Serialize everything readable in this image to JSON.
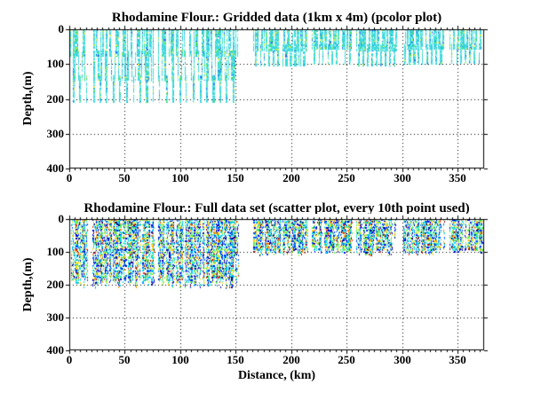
{
  "window": {
    "background": "#ffffff",
    "axis_color": "#000000"
  },
  "plots": [
    {
      "title": "Rhodamine Flour.: Gridded data (1km x 4m) (pcolor plot)",
      "ylabel": "Depth,(m)",
      "xlabel": "",
      "xtick_labels": [
        "0",
        "50",
        "100",
        "150",
        "200",
        "250",
        "300",
        "350"
      ],
      "ytick_labels": [
        "0",
        "100",
        "200",
        "300",
        "400"
      ]
    },
    {
      "title": "Rhodamine Flour.: Full data set (scatter plot, every 10th point used)",
      "ylabel": "Depth,(m)",
      "xlabel": "Distance, (km)",
      "xtick_labels": [
        "0",
        "50",
        "100",
        "150",
        "200",
        "250",
        "300",
        "350"
      ],
      "ytick_labels": [
        "0",
        "100",
        "200",
        "300",
        "400"
      ]
    }
  ],
  "chart_data": [
    {
      "type": "heatmap",
      "title": "Rhodamine Flour.: Gridded data (1km x 4m) (pcolor plot)",
      "xlabel": "",
      "ylabel": "Depth,(m)",
      "xlim": [
        0,
        374
      ],
      "ylim": [
        0,
        400
      ],
      "y_axis_reversed": true,
      "xticks": [
        0,
        50,
        100,
        150,
        200,
        250,
        300,
        350
      ],
      "yticks": [
        0,
        100,
        200,
        300,
        400
      ],
      "x_minor_step": 5,
      "grid": "dotted",
      "cell_km": 1,
      "cell_m": 4,
      "segments": [
        {
          "x_start": 1,
          "x_end": 152,
          "depth_top": 0,
          "depth_bottom": 210,
          "undulation_period_km": 6,
          "gaps": [
            [
              16,
              21
            ],
            [
              76,
              80
            ]
          ]
        },
        {
          "x_start": 166,
          "x_end": 215,
          "depth_top": 0,
          "depth_bottom": 105,
          "undulation_period_km": 4,
          "gaps": []
        },
        {
          "x_start": 219,
          "x_end": 255,
          "depth_top": 0,
          "depth_bottom": 102,
          "undulation_period_km": 4,
          "gaps": []
        },
        {
          "x_start": 259,
          "x_end": 296,
          "depth_top": 0,
          "depth_bottom": 105,
          "undulation_period_km": 4,
          "gaps": []
        },
        {
          "x_start": 301,
          "x_end": 338,
          "depth_top": 0,
          "depth_bottom": 103,
          "undulation_period_km": 4,
          "gaps": []
        },
        {
          "x_start": 343,
          "x_end": 372,
          "depth_top": 0,
          "depth_bottom": 100,
          "undulation_period_km": 4,
          "gaps": []
        }
      ],
      "palette": [
        {
          "color": "#3cd8e0",
          "weight": 50
        },
        {
          "color": "#63e6e6",
          "weight": 15
        },
        {
          "color": "#9df2ee",
          "weight": 8
        },
        {
          "color": "#27b7d4",
          "weight": 5
        },
        {
          "color": "#42df68",
          "weight": 7
        },
        {
          "color": "#b6ee52",
          "weight": 4
        },
        {
          "color": "#ecf25e",
          "weight": 2
        },
        {
          "color": "#2e6ef2",
          "weight": 4
        },
        {
          "color": "#ffffff",
          "weight": 5
        }
      ]
    },
    {
      "type": "scatter",
      "title": "Rhodamine Flour.: Full data set (scatter plot, every 10th point used)",
      "xlabel": "Distance, (km)",
      "ylabel": "Depth,(m)",
      "xlim": [
        0,
        374
      ],
      "ylim": [
        0,
        400
      ],
      "y_axis_reversed": true,
      "xticks": [
        0,
        50,
        100,
        150,
        200,
        250,
        300,
        350
      ],
      "yticks": [
        0,
        100,
        200,
        300,
        400
      ],
      "x_minor_step": 5,
      "grid": "dotted",
      "marker_px": 2,
      "segments": [
        {
          "x_start": 1,
          "x_end": 152,
          "depth_top": 0,
          "depth_bottom": 212,
          "undulation_period_km": 6,
          "gaps": [
            [
              16,
              21
            ],
            [
              76,
              80
            ]
          ]
        },
        {
          "x_start": 166,
          "x_end": 215,
          "depth_top": 0,
          "depth_bottom": 110,
          "undulation_period_km": 4,
          "gaps": []
        },
        {
          "x_start": 219,
          "x_end": 255,
          "depth_top": 0,
          "depth_bottom": 106,
          "undulation_period_km": 4,
          "gaps": []
        },
        {
          "x_start": 259,
          "x_end": 296,
          "depth_top": 0,
          "depth_bottom": 110,
          "undulation_period_km": 4,
          "gaps": []
        },
        {
          "x_start": 301,
          "x_end": 338,
          "depth_top": 0,
          "depth_bottom": 108,
          "undulation_period_km": 4,
          "gaps": []
        },
        {
          "x_start": 343,
          "x_end": 372,
          "depth_top": 0,
          "depth_bottom": 104,
          "undulation_period_km": 4,
          "gaps": []
        }
      ],
      "palette": [
        {
          "color": "#00008f",
          "weight": 5
        },
        {
          "color": "#0000e8",
          "weight": 9
        },
        {
          "color": "#0045ff",
          "weight": 10
        },
        {
          "color": "#0090ff",
          "weight": 9
        },
        {
          "color": "#00d4f0",
          "weight": 14
        },
        {
          "color": "#2ee8c8",
          "weight": 8
        },
        {
          "color": "#50f050",
          "weight": 9
        },
        {
          "color": "#97f03c",
          "weight": 7
        },
        {
          "color": "#d8e830",
          "weight": 7
        },
        {
          "color": "#ffd000",
          "weight": 5
        },
        {
          "color": "#ff8000",
          "weight": 4
        },
        {
          "color": "#f03000",
          "weight": 3
        },
        {
          "color": "#a00000",
          "weight": 2
        },
        {
          "color": "#ffffff",
          "weight": 8
        }
      ]
    }
  ]
}
